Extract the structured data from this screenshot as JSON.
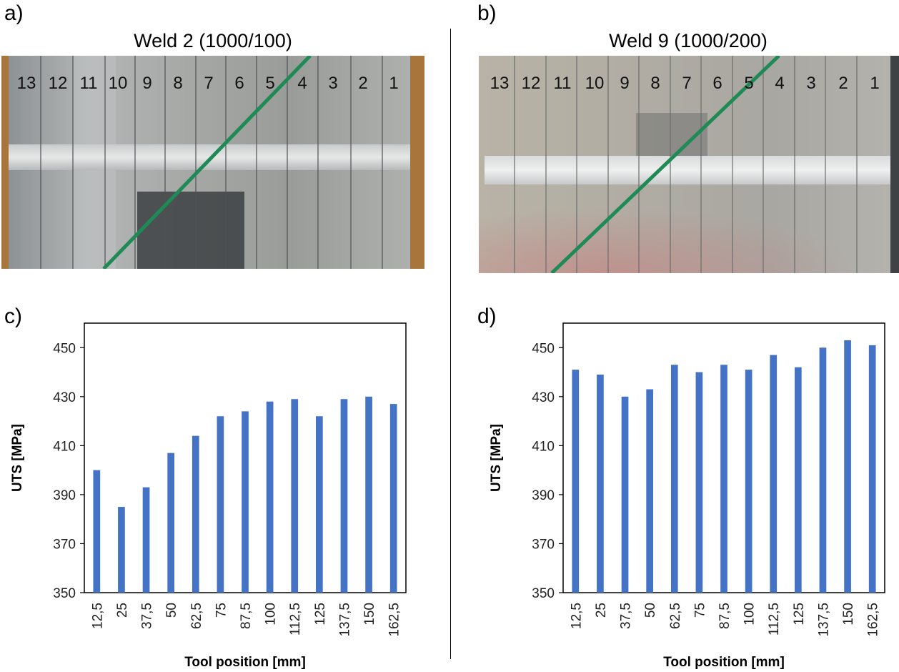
{
  "panels": {
    "a": {
      "label": "a)",
      "title": "Weld 2 (1000/100)",
      "strip_numbers": [
        "13",
        "12",
        "11",
        "10",
        "9",
        "8",
        "7",
        "6",
        "5",
        "4",
        "3",
        "2",
        "1"
      ]
    },
    "b": {
      "label": "b)",
      "title": "Weld 9 (1000/200)",
      "strip_numbers": [
        "13",
        "12",
        "11",
        "10",
        "9",
        "8",
        "7",
        "6",
        "5",
        "4",
        "3",
        "2",
        "1"
      ]
    },
    "c": {
      "label": "c)"
    },
    "d": {
      "label": "d)"
    }
  },
  "colors": {
    "bar": "#4472C4",
    "weld_line_green": "#1e8a55"
  },
  "chart_data": [
    {
      "type": "bar",
      "panel": "c",
      "categories": [
        "12,5",
        "25",
        "37,5",
        "50",
        "62,5",
        "75",
        "87,5",
        "100",
        "112,5",
        "125",
        "137,5",
        "150",
        "162,5"
      ],
      "values": [
        400,
        385,
        393,
        407,
        414,
        422,
        424,
        428,
        429,
        422,
        429,
        430,
        427
      ],
      "xlabel": "Tool position [mm]",
      "ylabel": "UTS [MPa]",
      "ylim": [
        350,
        460
      ],
      "yticks": [
        "350",
        "370",
        "390",
        "410",
        "430",
        "450"
      ],
      "grid": false
    },
    {
      "type": "bar",
      "panel": "d",
      "categories": [
        "12,5",
        "25",
        "37,5",
        "50",
        "62,5",
        "75",
        "87,5",
        "100",
        "112,5",
        "125",
        "137,5",
        "150",
        "162,5"
      ],
      "values": [
        441,
        439,
        430,
        433,
        443,
        440,
        443,
        441,
        447,
        442,
        450,
        453,
        451
      ],
      "xlabel": "Tool position [mm]",
      "ylabel": "UTS [MPa]",
      "ylim": [
        350,
        460
      ],
      "yticks": [
        "350",
        "370",
        "390",
        "410",
        "430",
        "450"
      ],
      "grid": false
    }
  ]
}
